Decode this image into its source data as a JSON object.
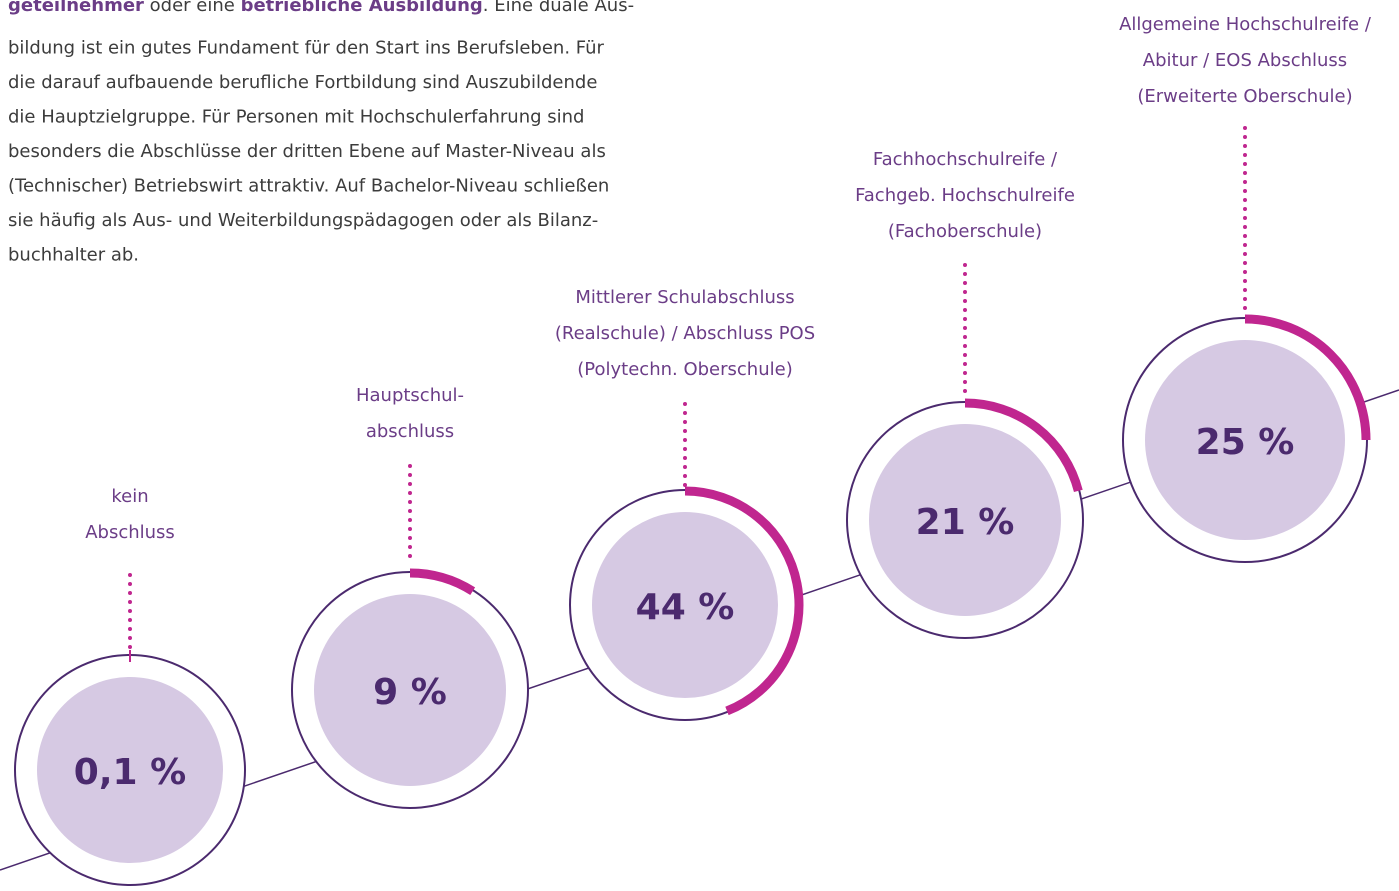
{
  "text": {
    "lines": [
      [
        {
          "text": "geteilnehmer",
          "bold": true
        },
        {
          "text": " oder eine ",
          "bold": false
        },
        {
          "text": "betriebliche Ausbildung",
          "bold": true
        },
        {
          "text": ". Eine duale Aus-",
          "bold": false
        }
      ],
      "bildung ist ein gutes Fundament für den Start ins Berufsleben. Für",
      "die darauf aufbauende berufliche Fortbildung sind Auszubildende",
      "die Hauptzielgruppe. Für Personen mit Hochschulerfahrung sind",
      "besonders die Abschlüsse der dritten Ebene auf Master-Niveau als",
      "(Technischer) Betriebswirt attraktiv. Auf Bachelor-Niveau schließen",
      "sie häufig als Aus- und Weiterbildungspädagogen oder als Bilanz-",
      "buchhalter ab."
    ]
  },
  "chart_data": {
    "type": "progress-ring",
    "categories": [
      "kein\nAbschluss",
      "Hauptschul-\nabschluss",
      "Mittlerer Schulabschluss\n(Realschule) / Abschluss POS\n(Polytechn. Oberschule)",
      "Fachhochschulreife /\nFachgeb. Hochschulreife\n(Fachoberschule)",
      "Allgemeine Hochschulreife /\nAbitur / EOS Abschluss\n(Erweiterte Oberschule)"
    ],
    "values": [
      0.1,
      9,
      44,
      21,
      25
    ],
    "value_labels": [
      "0,1 %",
      "9 %",
      "44 %",
      "21 %",
      "25 %"
    ],
    "color": "#c0268f"
  }
}
